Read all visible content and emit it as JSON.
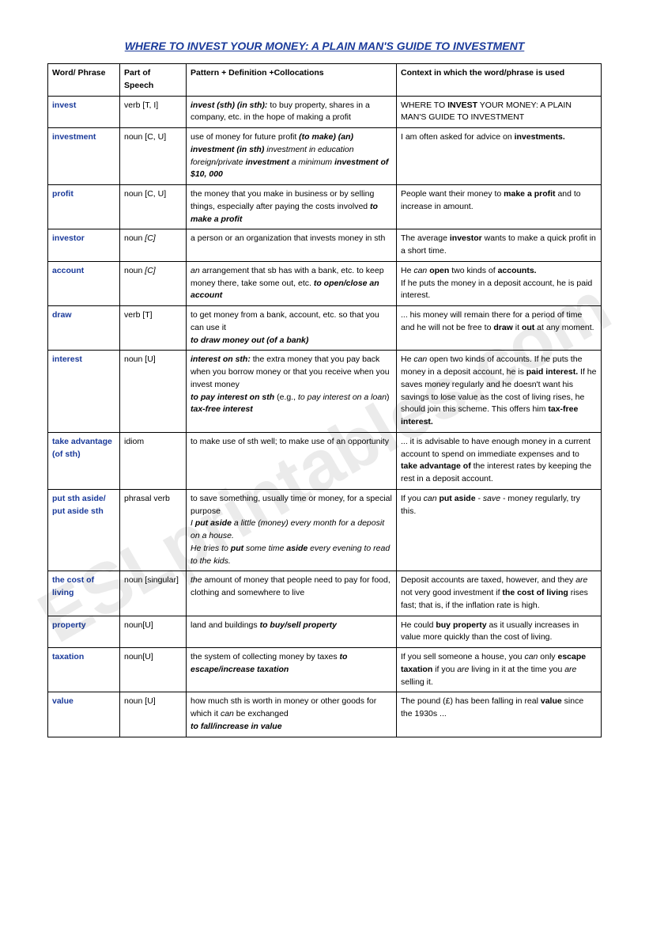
{
  "title": "WHERE TO INVEST YOUR MONEY: A PLAIN MAN'S GUIDE TO INVESTMENT",
  "watermark": "ESLprintables.com",
  "columns": {
    "c1": "Word/ Phrase",
    "c2": "Part of Speech",
    "c3": "Pattern + Definition +Collocations",
    "c4": "Context in which the word/phrase is used"
  },
  "rows": [
    {
      "word": "invest",
      "pos": "verb [T, I]",
      "def": "<span class='bi'>invest (sth) (in sth):</span> to buy property, shares in a company, etc. in the hope of making a profit",
      "ctx": "WHERE TO <span class='b'>INVEST</span> YOUR MONEY: A PLAIN MAN'S GUIDE TO INVESTMENT"
    },
    {
      "word": "investment",
      "pos": "noun [C, U]",
      "def": "use of money for future profit <span class='bi'>(to make) (an) investment (in sth)</span> <span class='i'>investment in education foreign/private</span> <span class='bi'>investment</span> <span class='i'>a minimum</span> <span class='bi'>investment of $10, 000</span>",
      "ctx": " I am often asked for advice on <span class='b'>investments.</span>"
    },
    {
      "word": "profit",
      "pos": "noun [C, U]",
      "def": "the money that you make in business or by selling things, especially after paying the costs involved <span class='bi'>to make a profit</span>",
      "ctx": "People want their money to <span class='b'>make a profit</span> and to increase in amount."
    },
    {
      "word": "investor",
      "pos": "noun <span class='i'>[C]</span>",
      "def": "a person or an organization that invests money in sth",
      "ctx": "The average <span class='b'>investor</span> wants to make a quick profit in a short time."
    },
    {
      "word": "account",
      "pos": "noun <span class='i'>[C]</span>",
      "def": "<span class='i'>an</span> arrangement that sb has with a bank, etc. to keep money there, take some out, etc. <span class='bi'>to open/close an account</span>",
      "ctx": "He <span class='i'>can</span> <span class='b'>open</span> two kinds of <span class='b'>accounts.</span><br>If he puts the money in a deposit account, he is paid interest."
    },
    {
      "word": "draw",
      "pos": "verb [T]",
      "def": "to get money from a bank, account, etc. so that you can use it<br><span class='bi'>to draw money out (of a bank)</span>",
      "ctx": "... his money will remain there for a period of time and he will not be free to <span class='b'>draw</span> it <span class='b'>out</span> at any moment."
    },
    {
      "word": "interest",
      "pos": "noun [U]",
      "def": "<span class='bi'>interest on sth:</span> the extra money that you pay back when you borrow money or that you receive when you invest money<br><span class='bi'>to pay interest on sth</span> (e.g., <span class='i'>to pay interest on a loan</span>)<br><span class='bi'>tax-free interest</span>",
      "ctx": "He <span class='i'>can</span> open two kinds of accounts. If he puts the money in a deposit account, he is <span class='b'>paid interest.</span> If he saves money regularly and he doesn't want his savings to lose value as the cost of living rises, he should join this scheme.  This offers him <span class='b'>tax-free interest.</span>"
    },
    {
      "word": "take advantage (of sth)",
      "pos": "idiom",
      "def": "to make use of sth well; to make use of an opportunity",
      "ctx": "... it is advisable to have enough money in a current account to spend on immediate expenses and to <span class='b'>take advantage of</span> the interest rates by keeping the rest in a deposit account."
    },
    {
      "word": "put sth aside/ put aside sth",
      "pos": "phrasal verb",
      "def": "to save something, usually time or money, for a special purpose<br><span class='i'>I</span> <span class='bi'>put aside</span> <span class='i'>a little (money) every month for a deposit on a house.<br>He tries to</span> <span class='bi'>put</span> <span class='i'>some time</span> <span class='bi'>aside</span> <span class='i'>every evening to read to the kids.</span>",
      "ctx": "If you <span class='i'>can</span> <span class='b'>put aside</span> - <span class='i'>save</span> - money regularly, try this."
    },
    {
      "word": "the cost of living",
      "pos": "noun [singular]",
      "def": "<span class='i'>the</span> amount of money that people need to pay for food, clothing and somewhere to live",
      "ctx": "Deposit accounts are taxed, however, and they <span class='i'>are</span> not very good investment if <span class='b'>the cost of living</span> rises fast; that is, if the inflation rate is high."
    },
    {
      "word": "property",
      "pos": "noun[U]",
      "def": "land and buildings <span class='bi'>to buy/sell property</span>",
      "ctx": "He could <span class='b'>buy property</span> as it usually increases in value more quickly than the cost of living."
    },
    {
      "word": "taxation",
      "pos": "noun[U]",
      "def": "the system of collecting money by taxes <span class='bi'>to escape/increase taxation</span>",
      "ctx": "If you sell someone a house, you <span class='i'>can</span> only <span class='b'>escape taxation</span> if you <span class='i'>are</span> living in it at the time you <span class='i'>are</span> selling it."
    },
    {
      "word": "value",
      "pos": "noun [U]",
      "def": "how much sth is worth in money or other goods for which it <span class='i'>can</span> be exchanged<br><span class='bi'>to fall/increase in value</span>",
      "ctx": "The pound (£) has been falling in real <span class='b'>value</span> since the 1930s ..."
    }
  ]
}
